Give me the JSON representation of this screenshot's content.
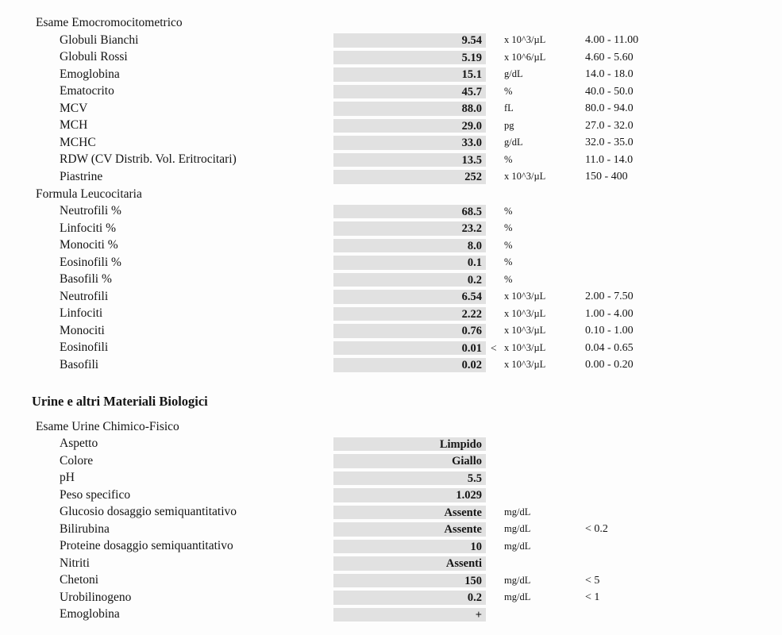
{
  "document": {
    "background": "#fdfdfd",
    "bar_color": "#e1e1e1",
    "text_color": "#141414",
    "heading": "Urine e altri Materiali Biologici"
  },
  "sections": [
    {
      "type": "group",
      "title": "Esame Emocromocitometrico",
      "rows": [
        {
          "label": "Globuli Bianchi",
          "value": "9.54",
          "flag": "",
          "unit": "x 10^3/µL",
          "range": "4.00 - 11.00"
        },
        {
          "label": "Globuli Rossi",
          "value": "5.19",
          "flag": "",
          "unit": "x 10^6/µL",
          "range": "4.60 - 5.60"
        },
        {
          "label": "Emoglobina",
          "value": "15.1",
          "flag": "",
          "unit": "g/dL",
          "range": "14.0 - 18.0"
        },
        {
          "label": "Ematocrito",
          "value": "45.7",
          "flag": "",
          "unit": "%",
          "range": "40.0 - 50.0"
        },
        {
          "label": "MCV",
          "value": "88.0",
          "flag": "",
          "unit": "fL",
          "range": "80.0 - 94.0"
        },
        {
          "label": "MCH",
          "value": "29.0",
          "flag": "",
          "unit": "pg",
          "range": "27.0 - 32.0"
        },
        {
          "label": "MCHC",
          "value": "33.0",
          "flag": "",
          "unit": "g/dL",
          "range": "32.0 - 35.0"
        },
        {
          "label": "RDW (CV Distrib. Vol. Eritrocitari)",
          "value": "13.5",
          "flag": "",
          "unit": "%",
          "range": "11.0 - 14.0"
        },
        {
          "label": "Piastrine",
          "value": "252",
          "flag": "",
          "unit": "x 10^3/µL",
          "range": "150 - 400"
        }
      ]
    },
    {
      "type": "group",
      "title": "Formula Leucocitaria",
      "rows": [
        {
          "label": "Neutrofili %",
          "value": "68.5",
          "flag": "",
          "unit": "%",
          "range": ""
        },
        {
          "label": "Linfociti %",
          "value": "23.2",
          "flag": "",
          "unit": "%",
          "range": ""
        },
        {
          "label": "Monociti %",
          "value": "8.0",
          "flag": "",
          "unit": "%",
          "range": ""
        },
        {
          "label": "Eosinofili %",
          "value": "0.1",
          "flag": "",
          "unit": "%",
          "range": ""
        },
        {
          "label": "Basofili %",
          "value": "0.2",
          "flag": "",
          "unit": "%",
          "range": ""
        },
        {
          "label": "Neutrofili",
          "value": "6.54",
          "flag": "",
          "unit": "x 10^3/µL",
          "range": "2.00 - 7.50"
        },
        {
          "label": "Linfociti",
          "value": "2.22",
          "flag": "",
          "unit": "x 10^3/µL",
          "range": "1.00 - 4.00"
        },
        {
          "label": "Monociti",
          "value": "0.76",
          "flag": "",
          "unit": "x 10^3/µL",
          "range": "0.10 - 1.00"
        },
        {
          "label": "Eosinofili",
          "value": "0.01",
          "flag": "<",
          "unit": "x 10^3/µL",
          "range": "0.04 - 0.65"
        },
        {
          "label": "Basofili",
          "value": "0.02",
          "flag": "",
          "unit": "x 10^3/µL",
          "range": "0.00 - 0.20"
        }
      ]
    },
    {
      "type": "heading",
      "title": "Urine e altri Materiali Biologici"
    },
    {
      "type": "group",
      "title": "Esame Urine Chimico-Fisico",
      "rows": [
        {
          "label": "Aspetto",
          "value": "Limpido",
          "flag": "",
          "unit": "",
          "range": ""
        },
        {
          "label": "Colore",
          "value": "Giallo",
          "flag": "",
          "unit": "",
          "range": ""
        },
        {
          "label": "pH",
          "value": "5.5",
          "flag": "",
          "unit": "",
          "range": ""
        },
        {
          "label": "Peso specifico",
          "value": "1.029",
          "flag": "",
          "unit": "",
          "range": ""
        },
        {
          "label": "Glucosio dosaggio semiquantitativo",
          "value": "Assente",
          "flag": "",
          "unit": "mg/dL",
          "range": ""
        },
        {
          "label": "Bilirubina",
          "value": "Assente",
          "flag": "",
          "unit": "mg/dL",
          "range": "< 0.2"
        },
        {
          "label": "Proteine dosaggio semiquantitativo",
          "value": "10",
          "flag": "",
          "unit": "mg/dL",
          "range": ""
        },
        {
          "label": "Nitriti",
          "value": "Assenti",
          "flag": "",
          "unit": "",
          "range": ""
        },
        {
          "label": "Chetoni",
          "value": "150",
          "flag": "",
          "unit": "mg/dL",
          "range": "< 5"
        },
        {
          "label": "Urobilinogeno",
          "value": "0.2",
          "flag": "",
          "unit": "mg/dL",
          "range": "< 1"
        },
        {
          "label": "Emoglobina",
          "value": "+",
          "flag": "",
          "unit": "",
          "range": ""
        }
      ]
    }
  ]
}
